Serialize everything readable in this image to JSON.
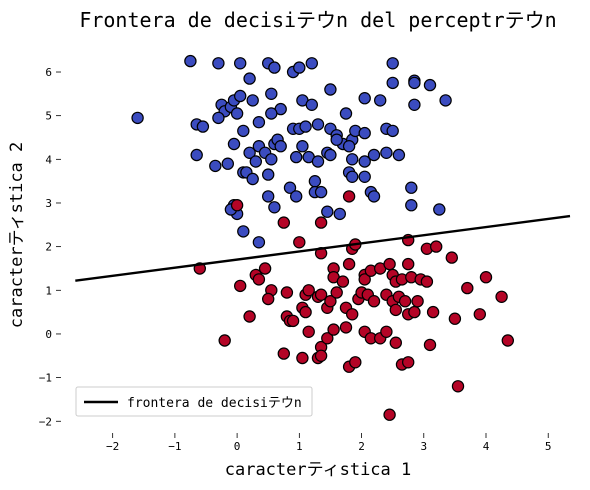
{
  "chart_data": {
    "type": "scatter",
    "title": "Frontera de decisiテウn del perceptrテウn",
    "xlabel": "caracterティstica 1",
    "ylabel": "caracterティstica 2",
    "xlim": [
      -2.75,
      5.35
    ],
    "ylim": [
      -2.2,
      6.55
    ],
    "xticks": [
      -2,
      -1,
      0,
      1,
      2,
      3,
      4,
      5
    ],
    "yticks": [
      -2,
      -1,
      0,
      1,
      2,
      3,
      4,
      5,
      6
    ],
    "grid": false,
    "legend_position": "lower-left",
    "colors": {
      "class_0": "#3b4cc0",
      "class_1": "#b40426",
      "edge": "#000000",
      "line": "#000000"
    },
    "boundary": {
      "name": "frontera de decisiテウn",
      "x": [
        -2.6,
        5.35
      ],
      "y": [
        1.22,
        2.7
      ]
    },
    "series": [
      {
        "color": "#3b4cc0",
        "points": [
          [
            -1.6,
            4.95
          ],
          [
            -0.75,
            6.25
          ],
          [
            -0.3,
            6.2
          ],
          [
            0.05,
            6.2
          ],
          [
            0.5,
            6.2
          ],
          [
            0.6,
            6.1
          ],
          [
            0.9,
            6.0
          ],
          [
            1.0,
            6.1
          ],
          [
            1.2,
            6.2
          ],
          [
            2.5,
            6.2
          ],
          [
            2.5,
            5.75
          ],
          [
            2.85,
            5.8
          ],
          [
            3.1,
            5.7
          ],
          [
            -0.25,
            5.25
          ],
          [
            -0.2,
            5.1
          ],
          [
            -0.1,
            5.2
          ],
          [
            -0.05,
            5.35
          ],
          [
            0.05,
            5.45
          ],
          [
            0.2,
            5.85
          ],
          [
            0.25,
            5.35
          ],
          [
            0.55,
            5.5
          ],
          [
            0.7,
            5.15
          ],
          [
            1.05,
            5.35
          ],
          [
            1.2,
            5.25
          ],
          [
            1.5,
            5.6
          ],
          [
            1.75,
            5.05
          ],
          [
            2.05,
            5.4
          ],
          [
            2.3,
            5.35
          ],
          [
            2.85,
            5.25
          ],
          [
            3.35,
            5.35
          ],
          [
            2.85,
            5.75
          ],
          [
            -0.65,
            4.8
          ],
          [
            -0.55,
            4.75
          ],
          [
            -0.3,
            4.95
          ],
          [
            0.0,
            5.05
          ],
          [
            0.1,
            4.65
          ],
          [
            0.35,
            4.85
          ],
          [
            0.55,
            5.05
          ],
          [
            0.9,
            4.7
          ],
          [
            1.0,
            4.7
          ],
          [
            1.1,
            4.75
          ],
          [
            1.3,
            4.8
          ],
          [
            1.5,
            4.7
          ],
          [
            1.6,
            4.55
          ],
          [
            1.7,
            4.35
          ],
          [
            1.85,
            4.45
          ],
          [
            1.9,
            4.65
          ],
          [
            2.05,
            4.6
          ],
          [
            2.4,
            4.7
          ],
          [
            2.5,
            4.65
          ],
          [
            -0.65,
            4.1
          ],
          [
            -0.35,
            3.85
          ],
          [
            -0.15,
            3.9
          ],
          [
            -0.05,
            4.35
          ],
          [
            0.1,
            3.7
          ],
          [
            0.2,
            4.15
          ],
          [
            0.3,
            3.95
          ],
          [
            0.35,
            4.3
          ],
          [
            0.45,
            4.15
          ],
          [
            0.55,
            4.0
          ],
          [
            0.6,
            4.35
          ],
          [
            0.65,
            4.45
          ],
          [
            0.7,
            4.3
          ],
          [
            0.95,
            4.05
          ],
          [
            1.05,
            4.3
          ],
          [
            1.15,
            4.05
          ],
          [
            1.3,
            3.95
          ],
          [
            1.25,
            3.5
          ],
          [
            1.45,
            4.15
          ],
          [
            1.5,
            4.1
          ],
          [
            1.6,
            4.45
          ],
          [
            1.8,
            4.3
          ],
          [
            1.85,
            4.0
          ],
          [
            2.05,
            3.6
          ],
          [
            2.05,
            3.95
          ],
          [
            2.2,
            4.1
          ],
          [
            2.4,
            4.15
          ],
          [
            2.6,
            4.1
          ],
          [
            0.15,
            3.7
          ],
          [
            0.25,
            3.55
          ],
          [
            0.5,
            3.65
          ],
          [
            0.5,
            3.15
          ],
          [
            0.6,
            2.9
          ],
          [
            0.85,
            3.35
          ],
          [
            0.95,
            3.15
          ],
          [
            1.25,
            3.25
          ],
          [
            1.35,
            3.25
          ],
          [
            1.45,
            2.8
          ],
          [
            1.65,
            2.75
          ],
          [
            1.8,
            3.7
          ],
          [
            1.85,
            3.6
          ],
          [
            2.15,
            3.25
          ],
          [
            2.2,
            3.15
          ],
          [
            2.8,
            3.35
          ],
          [
            2.8,
            2.95
          ],
          [
            3.25,
            2.85
          ],
          [
            -0.05,
            2.95
          ],
          [
            0.0,
            2.75
          ],
          [
            0.1,
            2.35
          ],
          [
            0.35,
            2.1
          ],
          [
            -0.1,
            2.85
          ]
        ]
      },
      {
        "color": "#b40426",
        "points": [
          [
            0.0,
            2.95
          ],
          [
            1.0,
            2.1
          ],
          [
            1.35,
            2.55
          ],
          [
            0.75,
            2.55
          ],
          [
            1.85,
            1.95
          ],
          [
            1.9,
            2.05
          ],
          [
            2.75,
            2.15
          ],
          [
            3.05,
            1.95
          ],
          [
            3.2,
            2.0
          ],
          [
            3.45,
            1.75
          ],
          [
            1.8,
            3.15
          ],
          [
            -0.6,
            1.5
          ],
          [
            0.05,
            1.1
          ],
          [
            0.3,
            1.35
          ],
          [
            0.35,
            1.25
          ],
          [
            0.45,
            1.5
          ],
          [
            0.55,
            1.0
          ],
          [
            0.8,
            0.95
          ],
          [
            1.1,
            0.9
          ],
          [
            1.15,
            1.0
          ],
          [
            1.35,
            1.85
          ],
          [
            1.55,
            1.5
          ],
          [
            1.55,
            1.3
          ],
          [
            1.7,
            1.2
          ],
          [
            1.8,
            1.6
          ],
          [
            2.05,
            1.35
          ],
          [
            2.05,
            1.25
          ],
          [
            2.15,
            1.45
          ],
          [
            2.3,
            1.5
          ],
          [
            2.45,
            1.6
          ],
          [
            2.5,
            1.35
          ],
          [
            2.55,
            1.2
          ],
          [
            2.65,
            1.25
          ],
          [
            2.75,
            1.6
          ],
          [
            2.8,
            1.3
          ],
          [
            2.95,
            1.25
          ],
          [
            3.05,
            1.2
          ],
          [
            4.0,
            1.3
          ],
          [
            4.25,
            0.85
          ],
          [
            3.7,
            1.05
          ],
          [
            -0.2,
            -0.15
          ],
          [
            0.2,
            0.4
          ],
          [
            0.5,
            0.8
          ],
          [
            0.8,
            0.4
          ],
          [
            0.85,
            0.3
          ],
          [
            1.05,
            0.6
          ],
          [
            1.1,
            0.5
          ],
          [
            1.3,
            0.85
          ],
          [
            1.35,
            0.9
          ],
          [
            1.45,
            0.6
          ],
          [
            1.5,
            0.75
          ],
          [
            1.6,
            0.95
          ],
          [
            1.75,
            0.6
          ],
          [
            1.85,
            0.45
          ],
          [
            1.95,
            0.8
          ],
          [
            2.0,
            0.95
          ],
          [
            2.1,
            0.9
          ],
          [
            2.2,
            0.75
          ],
          [
            2.4,
            0.9
          ],
          [
            2.5,
            0.75
          ],
          [
            2.55,
            0.55
          ],
          [
            2.6,
            0.85
          ],
          [
            2.7,
            0.75
          ],
          [
            2.75,
            0.45
          ],
          [
            2.85,
            0.5
          ],
          [
            2.9,
            0.75
          ],
          [
            3.15,
            0.5
          ],
          [
            3.5,
            0.35
          ],
          [
            3.9,
            0.45
          ],
          [
            4.35,
            -0.15
          ],
          [
            0.75,
            -0.45
          ],
          [
            0.9,
            0.3
          ],
          [
            1.05,
            -0.55
          ],
          [
            1.15,
            0.05
          ],
          [
            1.3,
            -0.55
          ],
          [
            1.35,
            -0.3
          ],
          [
            1.45,
            -0.1
          ],
          [
            1.55,
            0.1
          ],
          [
            1.75,
            0.15
          ],
          [
            1.8,
            -0.75
          ],
          [
            1.9,
            -0.65
          ],
          [
            2.05,
            0.05
          ],
          [
            2.15,
            -0.1
          ],
          [
            2.3,
            -0.1
          ],
          [
            2.4,
            0.05
          ],
          [
            2.55,
            -0.2
          ],
          [
            2.65,
            -0.7
          ],
          [
            2.75,
            -0.65
          ],
          [
            3.1,
            -0.25
          ],
          [
            3.55,
            -1.2
          ],
          [
            2.45,
            -1.85
          ],
          [
            1.35,
            -0.5
          ]
        ]
      }
    ]
  }
}
